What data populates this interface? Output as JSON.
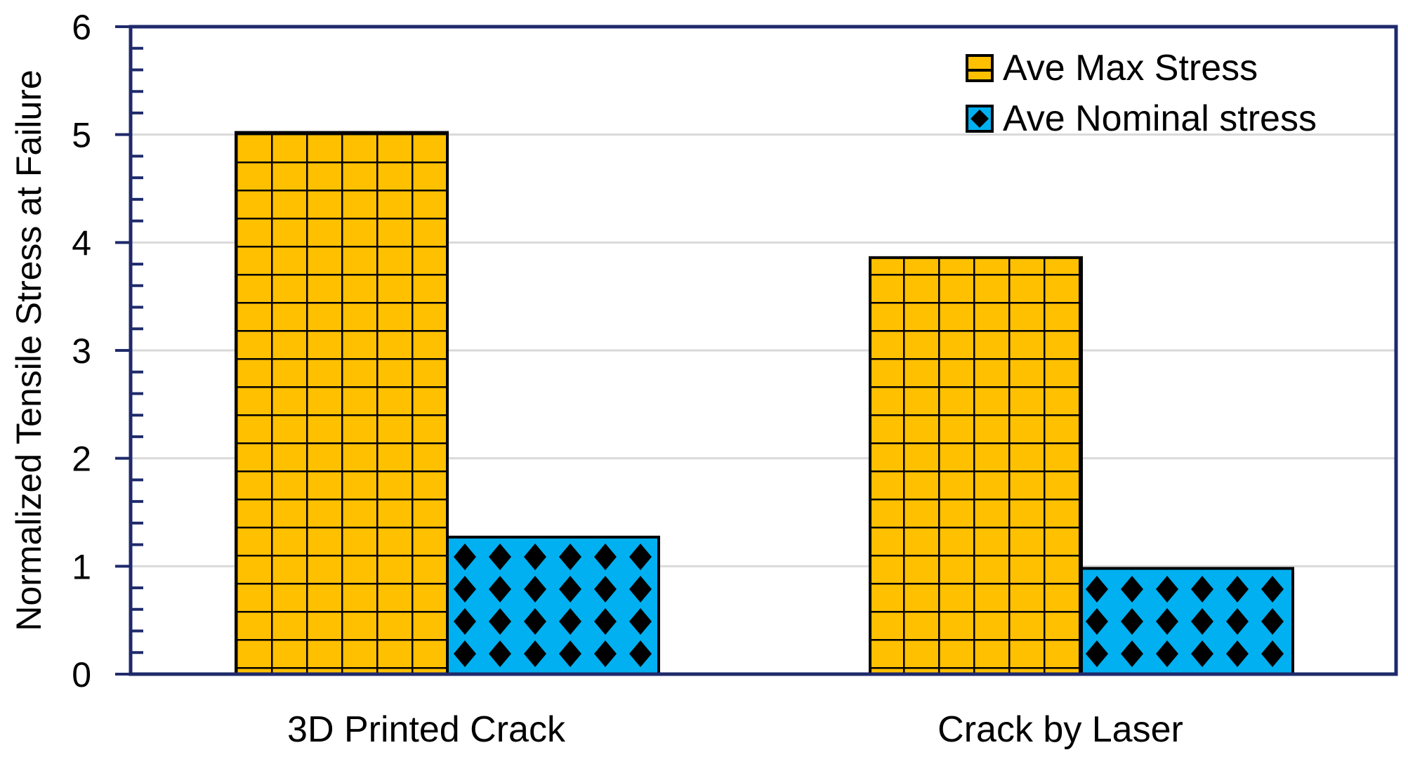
{
  "chart_data": {
    "type": "bar",
    "title": "",
    "xlabel": "",
    "ylabel": "Normalized  Tensile Stress at Failure",
    "categories": [
      "3D Printed Crack",
      "Crack by Laser"
    ],
    "series": [
      {
        "name": "Ave Max Stress",
        "values": [
          5.02,
          3.86
        ],
        "color": "#FFC000",
        "pattern": "grid"
      },
      {
        "name": "Ave Nominal stress",
        "values": [
          1.27,
          0.98
        ],
        "color": "#00B0F0",
        "pattern": "diamond"
      }
    ],
    "ylim": [
      0,
      6
    ],
    "yticks": [
      0,
      1,
      2,
      3,
      4,
      5,
      6
    ],
    "grid": true,
    "legend": "top-right",
    "colors": {
      "frame": "#1F2A6B",
      "gridline": "#D9D9D9",
      "bar_outline": "#000000"
    }
  }
}
